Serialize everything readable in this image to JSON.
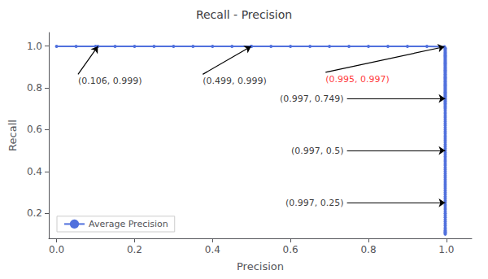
{
  "chart_data": {
    "type": "line",
    "title": "Recall - Precision",
    "xlabel": "Precision",
    "ylabel": "Recall",
    "x": [
      0.0,
      0.05,
      0.1,
      0.106,
      0.15,
      0.2,
      0.25,
      0.3,
      0.35,
      0.4,
      0.45,
      0.499,
      0.5,
      0.55,
      0.6,
      0.65,
      0.7,
      0.75,
      0.8,
      0.85,
      0.9,
      0.95,
      0.995,
      0.997,
      0.997,
      0.997,
      0.997,
      0.997,
      0.997,
      0.997,
      0.997,
      0.997,
      0.997,
      0.997,
      0.997,
      0.997,
      0.997,
      0.997,
      0.997,
      0.997,
      0.997,
      0.997,
      0.997,
      0.997,
      0.997,
      0.997,
      0.997,
      0.997,
      0.997,
      0.997,
      0.997,
      0.997,
      0.997,
      0.997,
      0.997,
      0.997,
      0.997,
      0.997,
      0.997,
      0.997,
      0.997,
      0.997,
      0.997,
      0.997,
      0.997,
      0.997,
      0.997,
      0.997,
      0.997,
      0.997,
      0.997,
      0.997,
      0.997,
      0.997,
      0.997,
      0.997,
      0.997,
      0.997,
      0.997,
      0.997,
      0.997,
      0.997,
      0.997,
      0.997,
      0.997,
      0.997,
      0.997,
      0.997,
      0.997,
      0.997,
      0.997,
      0.997,
      0.997,
      0.997,
      0.997,
      0.997,
      0.997,
      0.997,
      0.997,
      0.997,
      0.997,
      0.997,
      0.997,
      0.997,
      0.997,
      0.997,
      0.997,
      0.997,
      0.997,
      0.997,
      0.997,
      0.997,
      0.997,
      0.997,
      0.997,
      0.997,
      0.997,
      0.997,
      0.997,
      0.997,
      0.997,
      0.997,
      0.997,
      0.997,
      0.997,
      0.997,
      0.997,
      0.997,
      0.997,
      0.997,
      0.997,
      0.997,
      0.997,
      0.997,
      0.997,
      0.997,
      0.997,
      0.997,
      0.997,
      0.997,
      0.997,
      0.997
    ],
    "series": [
      {
        "name": "Average Precision",
        "marker": "circle",
        "values": [
          0.999,
          0.999,
          0.999,
          0.999,
          0.999,
          0.999,
          0.999,
          0.999,
          0.999,
          0.999,
          0.999,
          0.999,
          0.999,
          0.999,
          0.999,
          0.999,
          0.999,
          0.999,
          0.999,
          0.999,
          0.999,
          0.999,
          0.997,
          0.99,
          0.985,
          0.98,
          0.975,
          0.97,
          0.965,
          0.96,
          0.955,
          0.95,
          0.945,
          0.94,
          0.935,
          0.93,
          0.925,
          0.92,
          0.915,
          0.91,
          0.905,
          0.9,
          0.895,
          0.89,
          0.885,
          0.88,
          0.875,
          0.87,
          0.865,
          0.86,
          0.855,
          0.85,
          0.845,
          0.84,
          0.835,
          0.83,
          0.825,
          0.82,
          0.815,
          0.81,
          0.805,
          0.8,
          0.795,
          0.79,
          0.785,
          0.78,
          0.775,
          0.77,
          0.765,
          0.76,
          0.755,
          0.749,
          0.743,
          0.737,
          0.731,
          0.725,
          0.719,
          0.713,
          0.707,
          0.7,
          0.69,
          0.68,
          0.67,
          0.66,
          0.65,
          0.64,
          0.63,
          0.62,
          0.61,
          0.6,
          0.59,
          0.58,
          0.57,
          0.56,
          0.55,
          0.54,
          0.53,
          0.52,
          0.51,
          0.5,
          0.49,
          0.48,
          0.47,
          0.46,
          0.45,
          0.44,
          0.43,
          0.42,
          0.41,
          0.4,
          0.39,
          0.38,
          0.37,
          0.36,
          0.35,
          0.34,
          0.33,
          0.32,
          0.31,
          0.3,
          0.29,
          0.28,
          0.27,
          0.26,
          0.25,
          0.24,
          0.23,
          0.22,
          0.21,
          0.2,
          0.19,
          0.18,
          0.17,
          0.16,
          0.15,
          0.14,
          0.13,
          0.12,
          0.115,
          0.11,
          0.105,
          0.1
        ]
      }
    ],
    "xlim": [
      -0.02,
      1.065
    ],
    "ylim": [
      0.08,
      1.065
    ],
    "xticks": [
      {
        "value": 0,
        "label": "0.0"
      },
      0.2,
      0.4,
      0.6,
      0.8,
      {
        "value": 1,
        "label": "1.0"
      }
    ],
    "yticks": [
      0.2,
      0.4,
      0.6,
      0.8,
      {
        "value": 1,
        "label": "1.0"
      }
    ],
    "grid": false,
    "legend": "lower left",
    "annotations": [
      {
        "text": "(0.106, 0.999)",
        "xy": [
          0.106,
          0.999
        ],
        "xytext": [
          0.055,
          0.865
        ],
        "color": "black"
      },
      {
        "text": "(0.499, 0.999)",
        "xy": [
          0.499,
          0.999
        ],
        "xytext": [
          0.375,
          0.865
        ],
        "color": "black"
      },
      {
        "text": "(0.995, 0.997)",
        "xy": [
          0.995,
          0.997
        ],
        "xytext": [
          0.69,
          0.875
        ],
        "color": "red"
      },
      {
        "text": "(0.997, 0.749)",
        "xy": [
          0.997,
          0.749
        ],
        "xytext": [
          0.745,
          0.749
        ],
        "color": "black"
      },
      {
        "text": "(0.997, 0.5)",
        "xy": [
          0.997,
          0.5
        ],
        "xytext": [
          0.745,
          0.5
        ],
        "color": "black"
      },
      {
        "text": "(0.997, 0.25)",
        "xy": [
          0.997,
          0.25
        ],
        "xytext": [
          0.745,
          0.25
        ],
        "color": "black"
      }
    ]
  }
}
